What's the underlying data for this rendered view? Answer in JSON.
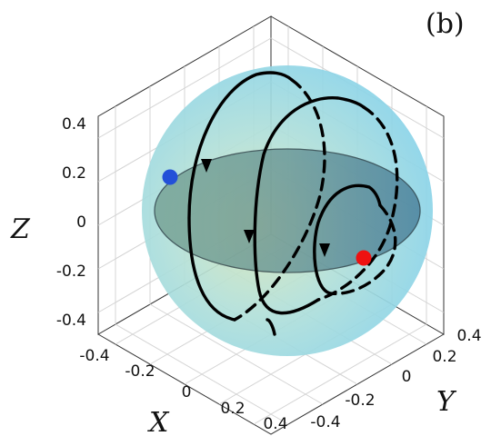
{
  "panel_label": "(b)",
  "chart_data": {
    "type": "3d-trajectory",
    "axes": {
      "x": {
        "label": "X",
        "range": [
          -0.4,
          0.4
        ],
        "ticks": [
          "-0.4",
          "-0.2",
          "0",
          "0.2",
          "0.4"
        ]
      },
      "y": {
        "label": "Y",
        "range": [
          -0.4,
          0.4
        ],
        "ticks": [
          "-0.4",
          "-0.2",
          "0",
          "0.2",
          "0.4"
        ]
      },
      "z": {
        "label": "Z",
        "range": [
          -0.4,
          0.4
        ],
        "ticks": [
          "0.4",
          "0.2",
          "0",
          "-0.2",
          "-0.4"
        ]
      }
    },
    "grid": true,
    "sphere": {
      "radius": 0.5,
      "color": "#8ed6e8",
      "equator_plane_color": "#4a7a8c"
    },
    "markers": [
      {
        "name": "blue",
        "color": "#2350d8"
      },
      {
        "name": "red",
        "color": "#ee1111"
      }
    ],
    "trajectory": {
      "color": "#000000",
      "loops": 3,
      "back_side_style": "dashed"
    }
  }
}
